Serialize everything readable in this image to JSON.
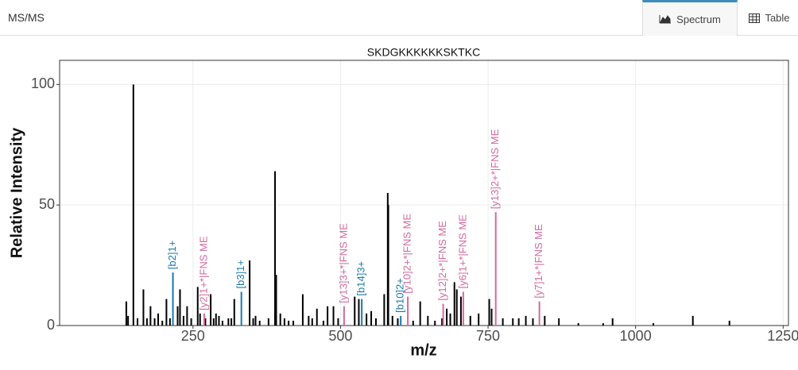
{
  "header": {
    "title": "MS/MS",
    "tabs": [
      "Spectrum",
      "Table"
    ]
  },
  "chart_data": {
    "type": "spectrum",
    "title": "SKDGKKKKKKSKTKC",
    "x_label": "m/z",
    "y_label": "Relative Intensity",
    "xlim": [
      24,
      1259
    ],
    "ylim": [
      0,
      110
    ],
    "xticks": [
      250,
      500,
      750,
      1000,
      1250
    ],
    "yticks": [
      0,
      50,
      100
    ],
    "grid": true,
    "series": [
      {
        "color": "#000000",
        "x": [
          137,
          140,
          149,
          156,
          166,
          172,
          178,
          185,
          191,
          198,
          205,
          211,
          224,
          228,
          234,
          240,
          247,
          258,
          262,
          271,
          280,
          285,
          289,
          294,
          300,
          310,
          315,
          320,
          346,
          352,
          356,
          363,
          378,
          389,
          391,
          398,
          405,
          412,
          420,
          436,
          446,
          452,
          460,
          471,
          478,
          488,
          496,
          524,
          531,
          544,
          552,
          560,
          574,
          580,
          581,
          588,
          597,
          623,
          635,
          648,
          660,
          672,
          680,
          686,
          693,
          697,
          704,
          720,
          734,
          752,
          756,
          775,
          792,
          802,
          814,
          826,
          846,
          870,
          903,
          945,
          961,
          1030,
          1097,
          1159
        ],
        "values": [
          10,
          4,
          100,
          3,
          15,
          3,
          8,
          3,
          5,
          2,
          11,
          3,
          8,
          15,
          4,
          8,
          3,
          16,
          5,
          3,
          13,
          3,
          5,
          4,
          2,
          3,
          3,
          11,
          27,
          3,
          4,
          2,
          3,
          64,
          21,
          5,
          3,
          2,
          2,
          13,
          4,
          3,
          7,
          2,
          8,
          8,
          3,
          12,
          11,
          5,
          6,
          3,
          13,
          55,
          50,
          4,
          3,
          2,
          10,
          4,
          2,
          3,
          7,
          5,
          18,
          15,
          12,
          4,
          5,
          11,
          7,
          3,
          3,
          3,
          4,
          3,
          4,
          3,
          1,
          1,
          3,
          1,
          4,
          2
        ]
      },
      {
        "color": "#1a78ae",
        "x": [
          216,
          332,
          536,
          602
        ],
        "values": [
          22,
          14,
          11,
          4
        ],
        "labels": [
          "[b2]1+",
          "[b3]1+",
          "[b14]3+",
          "[b10]2+"
        ]
      },
      {
        "color": "#d4699e",
        "x": [
          269,
          506,
          614,
          674,
          708,
          763,
          837
        ],
        "values": [
          5,
          8,
          12,
          9,
          14,
          47,
          10
        ],
        "labels": [
          "[y2]1+*|FNS ME",
          "[y13]3+*|FNS ME",
          "[y10]2+*|FNS ME",
          "[y12]2+*|FNS ME",
          "[y6]1+*|FNS ME",
          "[y13]2+*|FNS ME",
          "[y7]1+*|FNS ME"
        ]
      }
    ]
  }
}
